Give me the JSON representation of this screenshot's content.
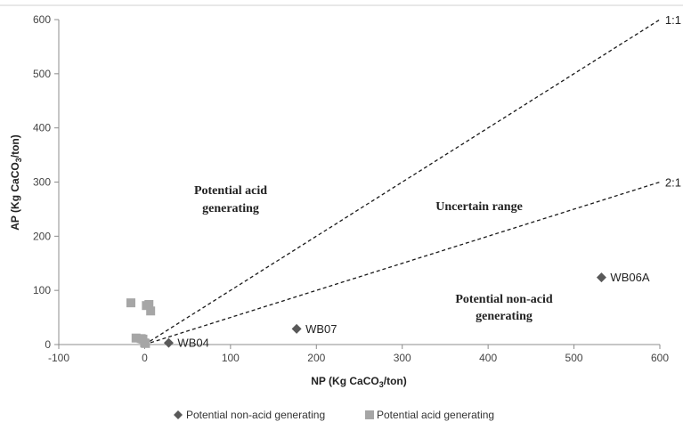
{
  "chart_data": {
    "type": "scatter",
    "xlabel": "NP (Kg CaCO3/ton)",
    "ylabel": "AP (Kg CaCO3/ton)",
    "xlim": [
      -100,
      600
    ],
    "ylim": [
      0,
      600
    ],
    "x_ticks": [
      -100,
      0,
      100,
      200,
      300,
      400,
      500,
      600
    ],
    "y_ticks": [
      0,
      100,
      200,
      300,
      400,
      500,
      600
    ],
    "grid": false,
    "legend_position": "bottom",
    "series": [
      {
        "name": "Potential non-acid generating",
        "marker": "diamond",
        "color": "#595959",
        "points": [
          {
            "x": 28,
            "y": 3,
            "label": "WB04"
          },
          {
            "x": 177,
            "y": 29,
            "label": "WB07"
          },
          {
            "x": 532,
            "y": 124,
            "label": "WB06A"
          }
        ]
      },
      {
        "name": "Potential acid generating",
        "marker": "square",
        "color": "#a6a6a6",
        "points": [
          {
            "x": -16,
            "y": 77
          },
          {
            "x": 2,
            "y": 72
          },
          {
            "x": 5,
            "y": 74
          },
          {
            "x": 7,
            "y": 62
          },
          {
            "x": -10,
            "y": 12
          },
          {
            "x": -4,
            "y": 11
          },
          {
            "x": -2,
            "y": 10
          },
          {
            "x": 0,
            "y": 3
          },
          {
            "x": 1,
            "y": 2
          }
        ]
      }
    ],
    "reference_lines": [
      {
        "label": "1:1",
        "style": "dashed",
        "from": [
          0,
          0
        ],
        "to": [
          600,
          600
        ]
      },
      {
        "label": "2:1",
        "style": "dashed",
        "from": [
          0,
          0
        ],
        "to": [
          600,
          300
        ]
      }
    ],
    "annotations": {
      "acid_line1": "Potential acid",
      "acid_line2": "generating",
      "uncertain": "Uncertain range",
      "nonacid_line1": "Potential non-acid",
      "nonacid_line2": "generating"
    }
  }
}
